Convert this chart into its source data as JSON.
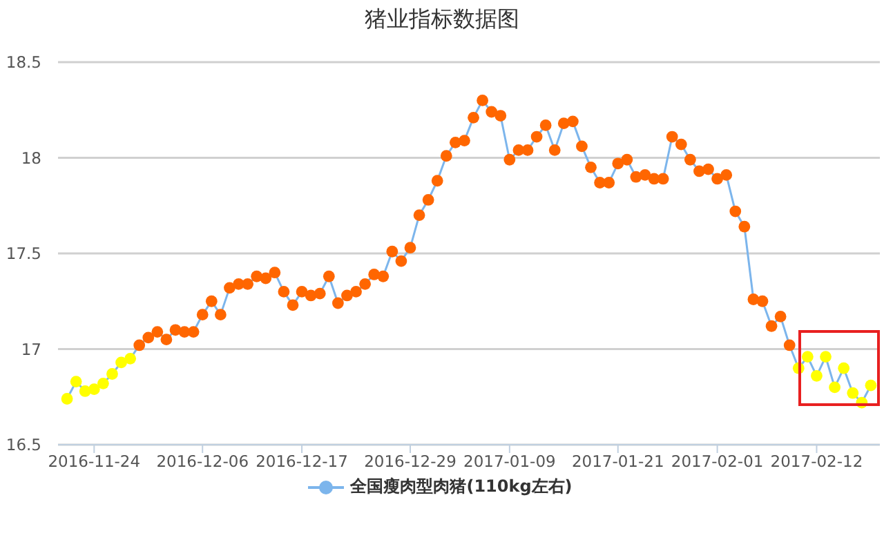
{
  "chart_data": {
    "type": "line",
    "title": "猪业指标数据图",
    "x": [
      "2016-11-21",
      "2016-11-22",
      "2016-11-23",
      "2016-11-24",
      "2016-11-25",
      "2016-11-26",
      "2016-11-27",
      "2016-11-28",
      "2016-11-29",
      "2016-11-30",
      "2016-12-01",
      "2016-12-02",
      "2016-12-03",
      "2016-12-04",
      "2016-12-05",
      "2016-12-06",
      "2016-12-07",
      "2016-12-08",
      "2016-12-09",
      "2016-12-10",
      "2016-12-11",
      "2016-12-12",
      "2016-12-13",
      "2016-12-14",
      "2016-12-15",
      "2016-12-16",
      "2016-12-17",
      "2016-12-18",
      "2016-12-19",
      "2016-12-20",
      "2016-12-21",
      "2016-12-22",
      "2016-12-23",
      "2016-12-24",
      "2016-12-25",
      "2016-12-26",
      "2016-12-27",
      "2016-12-28",
      "2016-12-29",
      "2016-12-30",
      "2016-12-31",
      "2017-01-01",
      "2017-01-02",
      "2017-01-03",
      "2017-01-04",
      "2017-01-05",
      "2017-01-06",
      "2017-01-07",
      "2017-01-08",
      "2017-01-09",
      "2017-01-10",
      "2017-01-11",
      "2017-01-12",
      "2017-01-13",
      "2017-01-14",
      "2017-01-15",
      "2017-01-16",
      "2017-01-17",
      "2017-01-18",
      "2017-01-19",
      "2017-01-20",
      "2017-01-21",
      "2017-01-22",
      "2017-01-23",
      "2017-01-24",
      "2017-01-25",
      "2017-01-26",
      "2017-01-27",
      "2017-01-28",
      "2017-01-29",
      "2017-01-30",
      "2017-01-31",
      "2017-02-01",
      "2017-02-02",
      "2017-02-03",
      "2017-02-04",
      "2017-02-05",
      "2017-02-06",
      "2017-02-07",
      "2017-02-08",
      "2017-02-09",
      "2017-02-10",
      "2017-02-11",
      "2017-02-12",
      "2017-02-13",
      "2017-02-14",
      "2017-02-15",
      "2017-02-16",
      "2017-02-17",
      "2017-02-18"
    ],
    "series": [
      {
        "name": "全国瘦肉型肉猪(110kg左右)",
        "color": "#7cb5ec",
        "values": [
          16.74,
          16.83,
          16.78,
          16.79,
          16.82,
          16.87,
          16.93,
          16.95,
          17.02,
          17.06,
          17.09,
          17.05,
          17.1,
          17.09,
          17.09,
          17.18,
          17.25,
          17.18,
          17.32,
          17.34,
          17.34,
          17.38,
          17.37,
          17.4,
          17.3,
          17.23,
          17.3,
          17.28,
          17.29,
          17.38,
          17.24,
          17.28,
          17.3,
          17.34,
          17.39,
          17.38,
          17.51,
          17.46,
          17.53,
          17.7,
          17.78,
          17.88,
          18.01,
          18.08,
          18.09,
          18.21,
          18.3,
          18.24,
          18.22,
          17.99,
          18.04,
          18.04,
          18.11,
          18.17,
          18.04,
          18.18,
          18.19,
          18.06,
          17.95,
          17.87,
          17.87,
          17.97,
          17.99,
          17.9,
          17.91,
          17.89,
          17.89,
          18.11,
          18.07,
          17.99,
          17.93,
          17.94,
          17.89,
          17.91,
          17.72,
          17.64,
          17.26,
          17.25,
          17.12,
          17.17,
          17.02,
          16.9,
          16.96,
          16.86,
          16.96,
          16.8,
          16.9,
          16.77,
          16.72,
          16.81
        ],
        "colors": [
          "#ffff00",
          "#ffff00",
          "#ffff00",
          "#ffff00",
          "#ffff00",
          "#ffff00",
          "#ffff00",
          "#ffff00",
          "#ff6600",
          "#ff6600",
          "#ff6600",
          "#ff6600",
          "#ff6600",
          "#ff6600",
          "#ff6600",
          "#ff6600",
          "#ff6600",
          "#ff6600",
          "#ff6600",
          "#ff6600",
          "#ff6600",
          "#ff6600",
          "#ff6600",
          "#ff6600",
          "#ff6600",
          "#ff6600",
          "#ff6600",
          "#ff6600",
          "#ff6600",
          "#ff6600",
          "#ff6600",
          "#ff6600",
          "#ff6600",
          "#ff6600",
          "#ff6600",
          "#ff6600",
          "#ff6600",
          "#ff6600",
          "#ff6600",
          "#ff6600",
          "#ff6600",
          "#ff6600",
          "#ff6600",
          "#ff6600",
          "#ff6600",
          "#ff6600",
          "#ff6600",
          "#ff6600",
          "#ff6600",
          "#ff6600",
          "#ff6600",
          "#ff6600",
          "#ff6600",
          "#ff6600",
          "#ff6600",
          "#ff6600",
          "#ff6600",
          "#ff6600",
          "#ff6600",
          "#ff6600",
          "#ff6600",
          "#ff6600",
          "#ff6600",
          "#ff6600",
          "#ff6600",
          "#ff6600",
          "#ff6600",
          "#ff6600",
          "#ff6600",
          "#ff6600",
          "#ff6600",
          "#ff6600",
          "#ff6600",
          "#ff6600",
          "#ff6600",
          "#ff6600",
          "#ff6600",
          "#ff6600",
          "#ff6600",
          "#ff6600",
          "#ff6600",
          "#ffff00",
          "#ffff00",
          "#ffff00",
          "#ffff00",
          "#ffff00",
          "#ffff00",
          "#ffff00",
          "#ffff00",
          "#ffff00"
        ]
      }
    ],
    "xlim": [
      "2016-11-20",
      "2017-02-19"
    ],
    "xticks": [
      "2016-11-24",
      "2016-12-06",
      "2016-12-17",
      "2016-12-29",
      "2017-01-09",
      "2017-01-21",
      "2017-02-01",
      "2017-02-12"
    ],
    "ylim": [
      16.5,
      18.5
    ],
    "yticks": [
      16.5,
      17,
      17.5,
      18,
      18.5
    ],
    "grid": "y",
    "legend": "bottom",
    "marker": "circle"
  }
}
